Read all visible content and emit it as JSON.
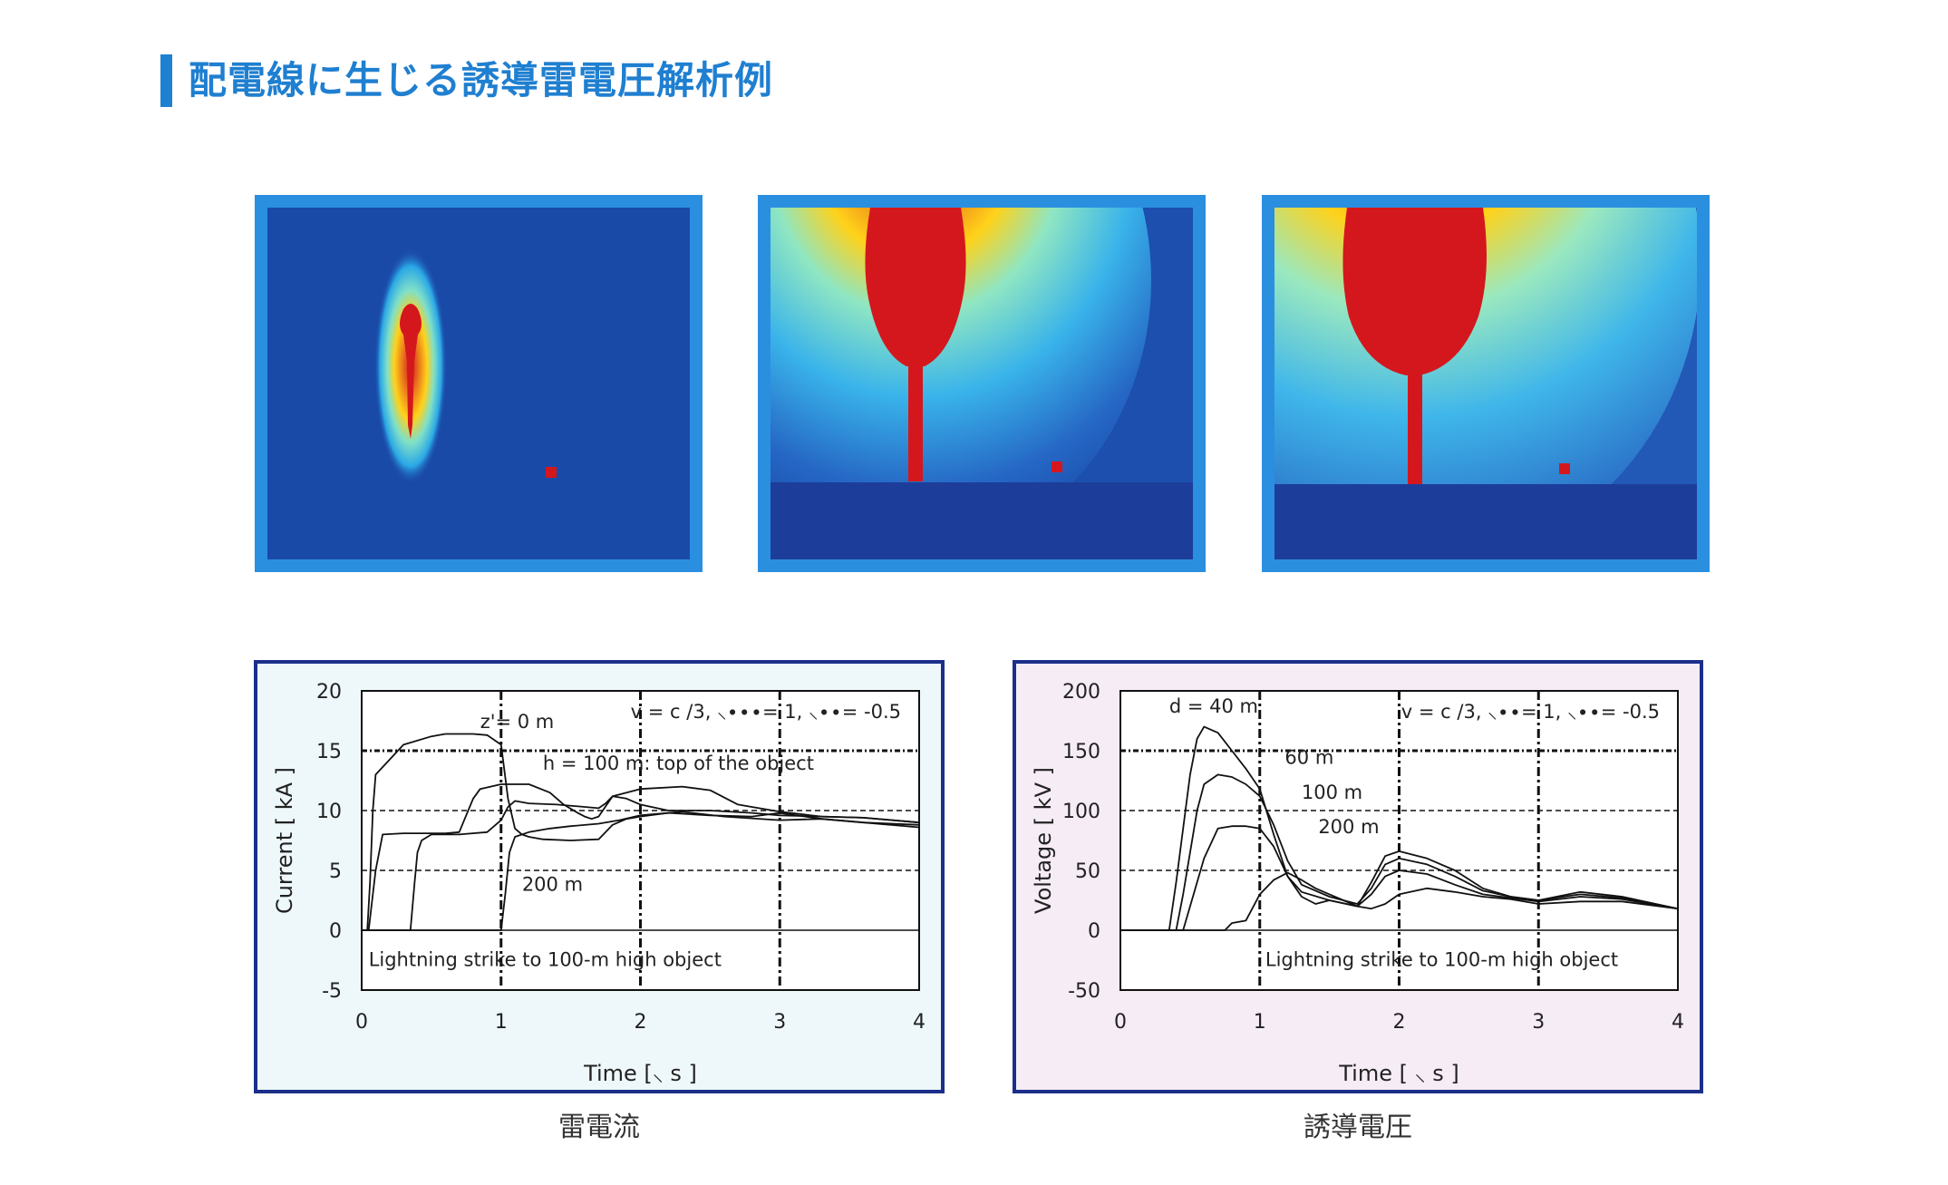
{
  "page": {
    "title": "配電線に生じる誘導雷電圧解析例"
  },
  "colors": {
    "title_accent": "#1f7fd0",
    "sim_frame": "#2b8fe0",
    "sim_background": "#1a4aa8",
    "sim_hot": "#d4171d",
    "chart_border": "#1b2f8a",
    "chart1_background": "#eef8fb",
    "chart2_background": "#f6ecf6"
  },
  "simulations": [
    {
      "name": "field-snapshot-1"
    },
    {
      "name": "field-snapshot-2"
    },
    {
      "name": "field-snapshot-3"
    }
  ],
  "captions": {
    "left": "雷電流",
    "right": "誘導電圧"
  },
  "chart_data": [
    {
      "type": "line",
      "xlabel": "Time [⸜ s ]",
      "ylabel": "Current [ kA ]",
      "xlim": [
        0,
        4
      ],
      "ylim": [
        -5,
        20
      ],
      "x_ticks": [
        "0",
        "1",
        "2",
        "3",
        "4"
      ],
      "y_ticks": [
        "20",
        "15",
        "10",
        "5",
        "0",
        "-5"
      ],
      "grid": true,
      "params_text": "v = c /3,    ⸜∙∙∙= 1,   ⸜∙∙= -0.5",
      "annotations": [
        {
          "text": "z'= 0 m",
          "at": [
            0.85,
            16.9
          ]
        },
        {
          "text": "h = 100 m: top of the object",
          "at": [
            1.3,
            13.4
          ]
        },
        {
          "text": "200 m",
          "at": [
            1.15,
            3.3
          ]
        },
        {
          "text": "Lightning strike to 100-m high object",
          "at": [
            0.05,
            -3.0
          ]
        }
      ],
      "series": [
        {
          "x": [
            0,
            0.04,
            0.06,
            0.08,
            0.1,
            0.3,
            0.5,
            0.6,
            0.7,
            0.8,
            0.9,
            1.0,
            1.05,
            1.1,
            1.15,
            1.2,
            1.3,
            1.5,
            1.7,
            1.8,
            1.9,
            2.0,
            2.2,
            2.5,
            2.8,
            3.0,
            3.3,
            3.6,
            4.0
          ],
          "values": [
            0,
            0,
            4,
            10,
            13,
            15.5,
            16.2,
            16.4,
            16.4,
            16.4,
            16.3,
            15.5,
            11,
            8.5,
            8,
            7.8,
            7.6,
            7.5,
            7.6,
            8.8,
            9.3,
            9.5,
            9.8,
            9.6,
            9.5,
            9.8,
            9.3,
            9.0,
            8.8
          ]
        },
        {
          "x": [
            0,
            0.05,
            0.1,
            0.15,
            0.3,
            0.6,
            0.7,
            0.8,
            0.85,
            1.0,
            1.2,
            1.35,
            1.45,
            1.55,
            1.6,
            1.65,
            1.7,
            1.8,
            2.0,
            2.3,
            2.5,
            2.7,
            3.0,
            3.3,
            3.6,
            4.0
          ],
          "values": [
            0,
            0,
            5,
            8,
            8.1,
            8.1,
            8.2,
            11,
            11.8,
            12.2,
            12.2,
            11.5,
            10.5,
            9.8,
            9.5,
            9.3,
            9.5,
            11.2,
            11.8,
            12,
            11.7,
            10.5,
            9.9,
            9.5,
            9.4,
            9.0
          ]
        },
        {
          "x": [
            0,
            0.35,
            0.38,
            0.4,
            0.43,
            0.5,
            0.7,
            0.9,
            1.0,
            1.05,
            1.1,
            1.2,
            1.4,
            1.6,
            1.7,
            1.75,
            1.8,
            1.9,
            2.0,
            2.2,
            2.5,
            2.8,
            3.0,
            3.3,
            3.6,
            4.0
          ],
          "values": [
            0,
            0,
            4,
            6.5,
            7.5,
            8,
            8,
            8.2,
            9.2,
            10.3,
            10.8,
            10.6,
            10.5,
            10.3,
            10.2,
            10.6,
            11.2,
            11.0,
            10.5,
            10.0,
            10.0,
            9.8,
            9.6,
            9.5,
            9.4,
            9.0
          ]
        },
        {
          "x": [
            0,
            1.0,
            1.03,
            1.06,
            1.1,
            1.2,
            1.35,
            1.5,
            1.7,
            1.85,
            2.0,
            2.3,
            2.6,
            3.0,
            3.3,
            3.6,
            4.0
          ],
          "values": [
            0,
            0,
            3,
            6.5,
            7.8,
            8.2,
            8.5,
            8.7,
            8.9,
            9.2,
            9.6,
            9.9,
            9.5,
            9.2,
            9.3,
            9.0,
            8.6
          ]
        }
      ]
    },
    {
      "type": "line",
      "xlabel": "Time [ ⸜ s ]",
      "ylabel": "Voltage [ kV ]",
      "xlim": [
        0,
        4
      ],
      "ylim": [
        -50,
        200
      ],
      "x_ticks": [
        "0",
        "1",
        "2",
        "3",
        "4"
      ],
      "y_ticks": [
        "200",
        "150",
        "100",
        "50",
        "0",
        "-50"
      ],
      "grid": true,
      "params_text": "v = c /3,   ⸜∙∙= 1,   ⸜∙∙= -0.5",
      "annotations": [
        {
          "text": "d = 40 m",
          "at": [
            0.35,
            182
          ]
        },
        {
          "text": "60 m",
          "at": [
            1.18,
            139
          ]
        },
        {
          "text": "100 m",
          "at": [
            1.3,
            110
          ]
        },
        {
          "text": "200 m",
          "at": [
            1.42,
            81
          ]
        },
        {
          "text": "Lightning strike to 100-m high object",
          "at": [
            1.04,
            -30
          ]
        }
      ],
      "series": [
        {
          "x": [
            0,
            0.35,
            0.4,
            0.5,
            0.55,
            0.6,
            0.7,
            0.8,
            0.9,
            1.0,
            1.1,
            1.2,
            1.3,
            1.4,
            1.5,
            1.7,
            1.8,
            1.9,
            2.0,
            2.2,
            2.4,
            2.6,
            2.8,
            3.0,
            3.3,
            3.6,
            4.0
          ],
          "values": [
            0,
            0,
            40,
            130,
            160,
            170,
            165,
            150,
            135,
            118,
            80,
            45,
            28,
            22,
            25,
            20,
            40,
            62,
            66,
            60,
            50,
            35,
            28,
            25,
            32,
            28,
            18
          ]
        },
        {
          "x": [
            0,
            0.4,
            0.45,
            0.55,
            0.6,
            0.7,
            0.8,
            0.9,
            1.0,
            1.1,
            1.2,
            1.3,
            1.5,
            1.7,
            1.8,
            1.9,
            2.0,
            2.2,
            2.4,
            2.6,
            2.8,
            3.0,
            3.3,
            3.6,
            4.0
          ],
          "values": [
            0,
            0,
            30,
            100,
            122,
            130,
            128,
            122,
            112,
            88,
            58,
            38,
            28,
            22,
            35,
            55,
            60,
            55,
            45,
            33,
            28,
            25,
            30,
            27,
            18
          ]
        },
        {
          "x": [
            0,
            0.45,
            0.5,
            0.6,
            0.7,
            0.8,
            0.9,
            1.0,
            1.1,
            1.2,
            1.3,
            1.5,
            1.7,
            1.8,
            1.9,
            2.0,
            2.2,
            2.4,
            2.6,
            2.8,
            3.0,
            3.3,
            3.6,
            4.0
          ],
          "values": [
            0,
            0,
            20,
            60,
            85,
            87,
            87,
            85,
            70,
            45,
            32,
            25,
            20,
            30,
            45,
            50,
            47,
            38,
            30,
            27,
            24,
            28,
            26,
            18
          ]
        },
        {
          "x": [
            0,
            0.75,
            0.8,
            0.9,
            1.0,
            1.1,
            1.2,
            1.3,
            1.4,
            1.5,
            1.6,
            1.7,
            1.8,
            1.9,
            2.0,
            2.2,
            2.4,
            2.6,
            2.8,
            3.0,
            3.3,
            3.6,
            4.0
          ],
          "values": [
            0,
            0,
            6,
            8,
            30,
            42,
            48,
            42,
            35,
            30,
            25,
            20,
            18,
            22,
            30,
            35,
            32,
            28,
            26,
            22,
            24,
            24,
            18
          ]
        }
      ]
    }
  ]
}
